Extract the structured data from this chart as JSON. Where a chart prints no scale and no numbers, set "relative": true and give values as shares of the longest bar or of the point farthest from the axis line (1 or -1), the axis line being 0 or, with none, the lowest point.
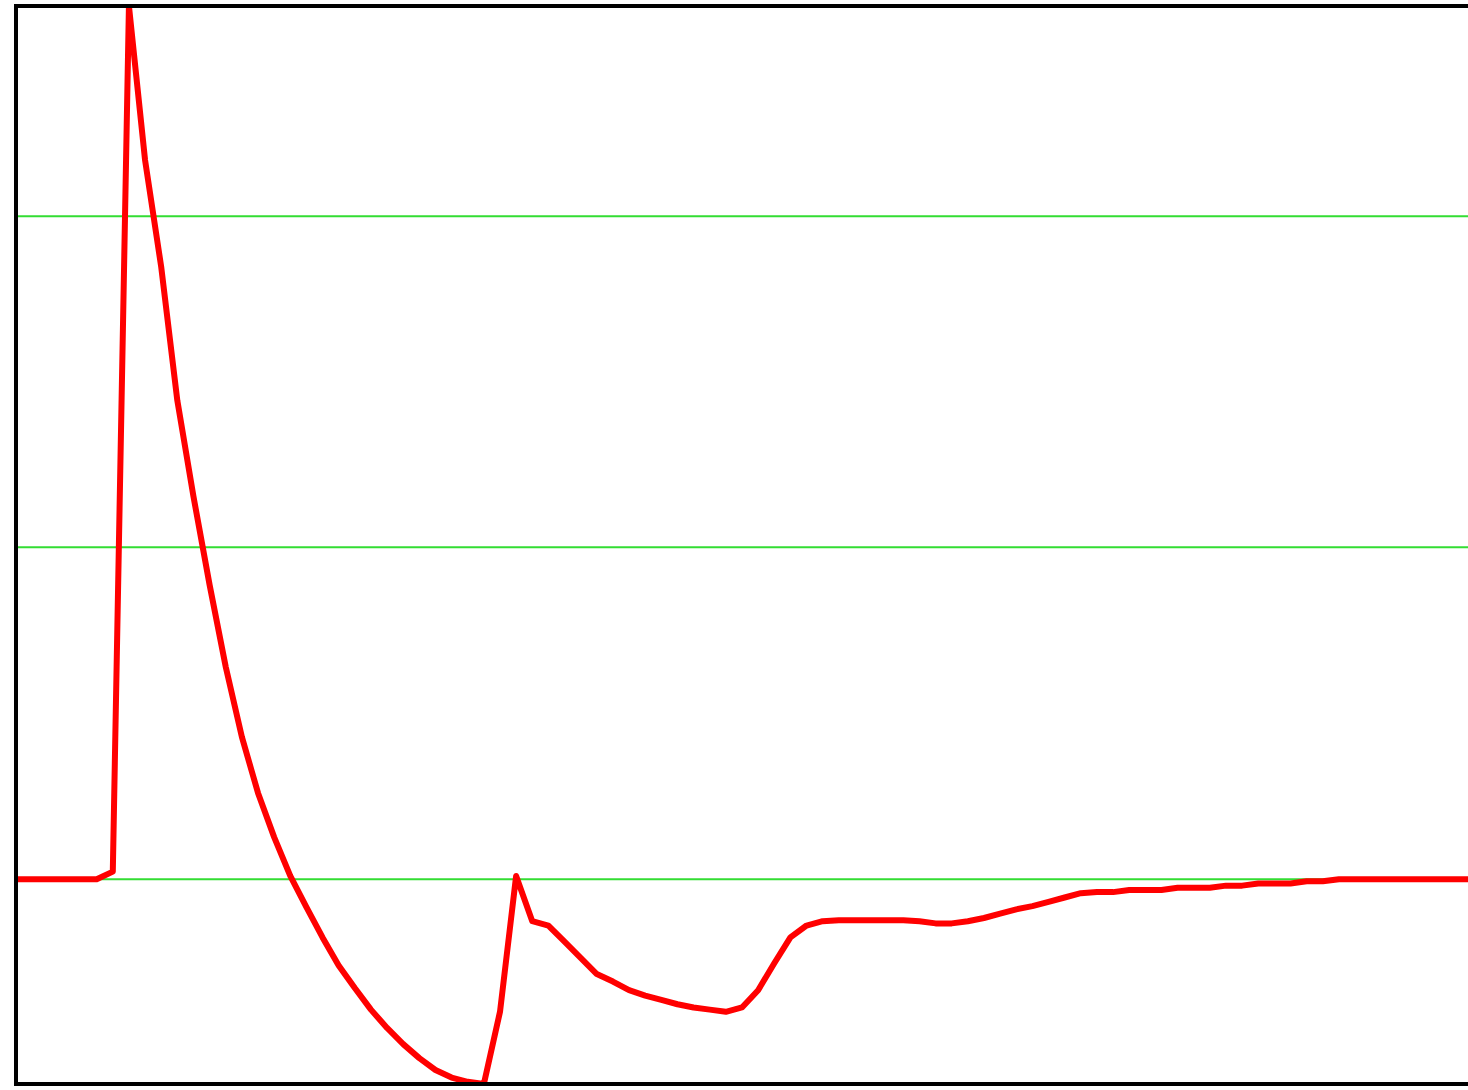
{
  "chart_data": {
    "type": "line",
    "relative": true,
    "marker": "none",
    "line_style": "solid",
    "categories": [
      null,
      null,
      null,
      null,
      null,
      null,
      null,
      null,
      null,
      null,
      null,
      null,
      null,
      null,
      null,
      null,
      null,
      null,
      null,
      null,
      null,
      null,
      null,
      null,
      null,
      null,
      null,
      null,
      null,
      null,
      null,
      null,
      null,
      null,
      null,
      null,
      null,
      null,
      null,
      null,
      null,
      null,
      null,
      null,
      null,
      null,
      null,
      null,
      null,
      null,
      null,
      null,
      null,
      null,
      null,
      null,
      null,
      null,
      null,
      null,
      null,
      null,
      null,
      null,
      null,
      null,
      null,
      null,
      null,
      null,
      null,
      null,
      null,
      null,
      null,
      null,
      null,
      null,
      null,
      null,
      null,
      null,
      null,
      null,
      null,
      null,
      null,
      null,
      null,
      null,
      null
    ],
    "series": [
      {
        "color": "#ff0000",
        "values": [
          0.19,
          0.19,
          0.19,
          0.19,
          0.19,
          0.19,
          0.197,
          1,
          0.857,
          0.758,
          0.634,
          0.545,
          0.463,
          0.387,
          0.322,
          0.27,
          0.229,
          0.193,
          0.164,
          0.136,
          0.11,
          0.089,
          0.069,
          0.052,
          0.037,
          0.024,
          0.013,
          0.006,
          0.002,
          0,
          0.067,
          0.193,
          0.151,
          0.147,
          0.132,
          0.117,
          0.102,
          0.095,
          0.087,
          0.082,
          0.078,
          0.074,
          0.071,
          0.069,
          0.067,
          0.071,
          0.087,
          0.112,
          0.136,
          0.147,
          0.151,
          0.152,
          0.152,
          0.152,
          0.152,
          0.152,
          0.151,
          0.149,
          0.149,
          0.151,
          0.154,
          0.158,
          0.162,
          0.165,
          0.169,
          0.173,
          0.177,
          0.178,
          0.178,
          0.18,
          0.18,
          0.18,
          0.182,
          0.182,
          0.182,
          0.184,
          0.184,
          0.186,
          0.186,
          0.186,
          0.188,
          0.188,
          0.19,
          0.19,
          0.19,
          0.19,
          0.19,
          0.19,
          0.19,
          0.19,
          0.19
        ]
      }
    ],
    "ref_lines": [
      {
        "axis": "y",
        "value": 0.19,
        "color": "#33dd33"
      },
      {
        "axis": "y",
        "value": 0.498,
        "color": "#33dd33"
      },
      {
        "axis": "y",
        "value": 0.805,
        "color": "#33dd33"
      }
    ],
    "legend": false
  }
}
